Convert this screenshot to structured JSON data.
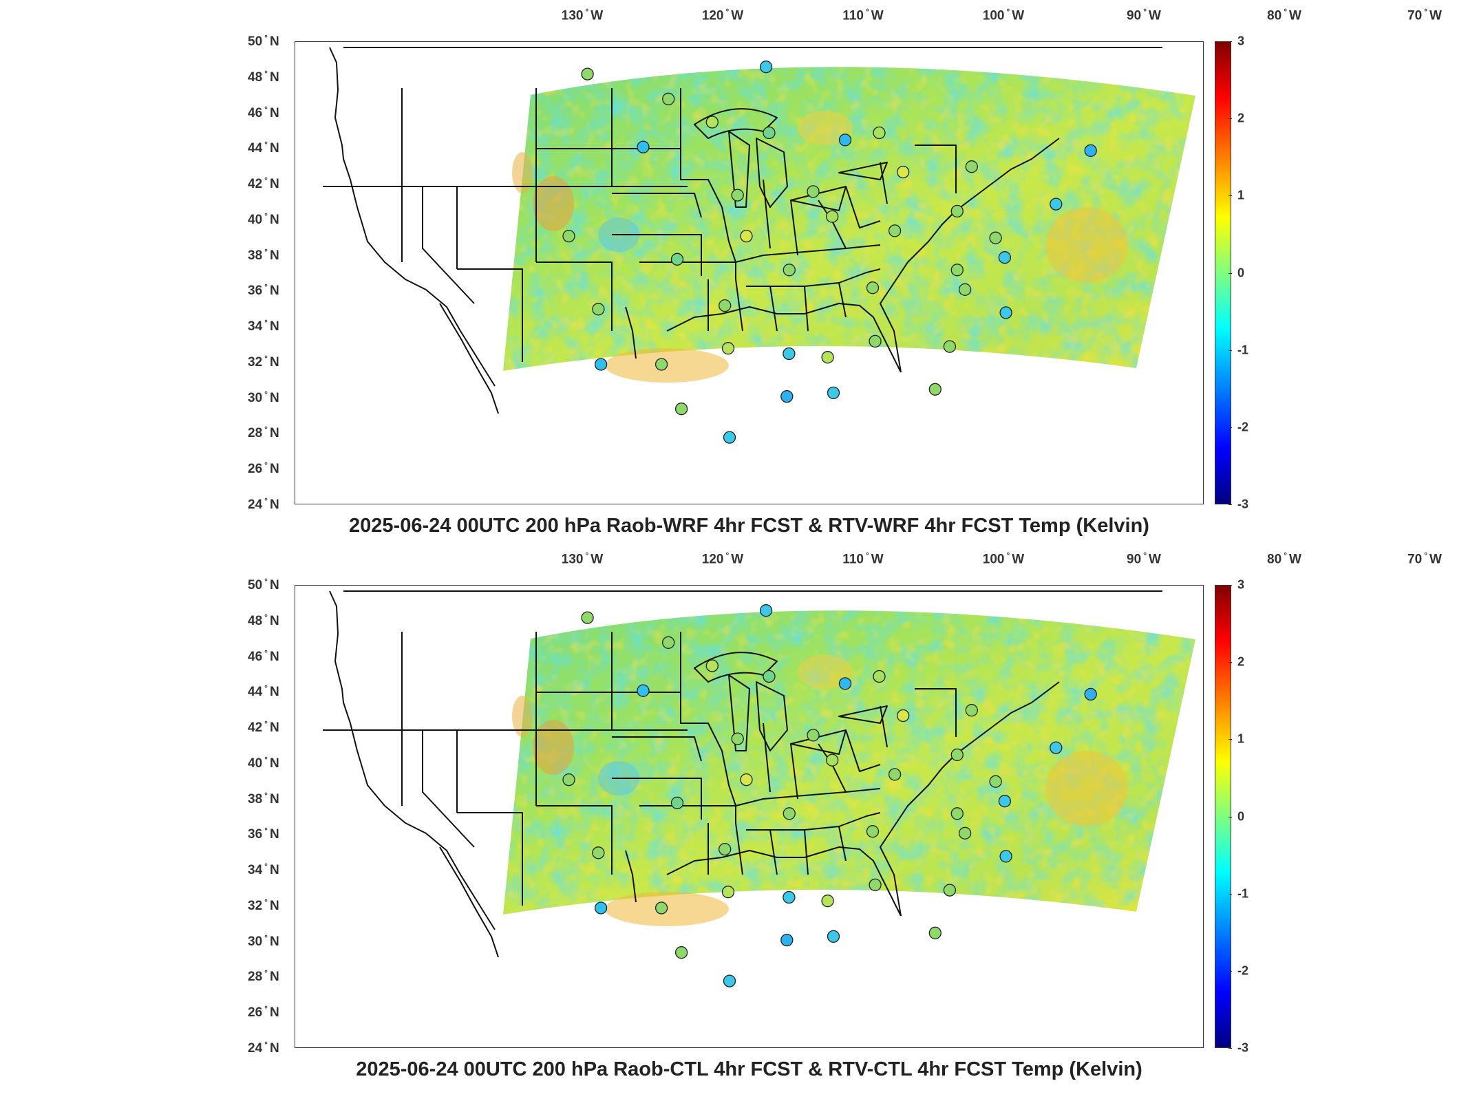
{
  "lon_ticks": [
    {
      "deg": 130,
      "text_num": "130",
      "text_dir": "W",
      "pos": 0.04
    },
    {
      "deg": 120,
      "text_num": "120",
      "text_dir": "W",
      "pos": 0.153
    },
    {
      "deg": 110,
      "text_num": "110",
      "text_dir": "W",
      "pos": 0.266
    },
    {
      "deg": 100,
      "text_num": "100",
      "text_dir": "W",
      "pos": 0.378
    },
    {
      "deg": 90,
      "text_num": "90",
      "text_dir": "W",
      "pos": 0.491
    },
    {
      "deg": 80,
      "text_num": "80",
      "text_dir": "W",
      "pos": 0.604
    },
    {
      "deg": 70,
      "text_num": "70",
      "text_dir": "W",
      "pos": 0.717
    }
  ],
  "lat_ticks": [
    {
      "deg": 50,
      "text_num": "50",
      "text_dir": "N"
    },
    {
      "deg": 48,
      "text_num": "48",
      "text_dir": "N"
    },
    {
      "deg": 46,
      "text_num": "46",
      "text_dir": "N"
    },
    {
      "deg": 44,
      "text_num": "44",
      "text_dir": "N"
    },
    {
      "deg": 42,
      "text_num": "42",
      "text_dir": "N"
    },
    {
      "deg": 40,
      "text_num": "40",
      "text_dir": "N"
    },
    {
      "deg": 38,
      "text_num": "38",
      "text_dir": "N"
    },
    {
      "deg": 36,
      "text_num": "36",
      "text_dir": "N"
    },
    {
      "deg": 34,
      "text_num": "34",
      "text_dir": "N"
    },
    {
      "deg": 32,
      "text_num": "32",
      "text_dir": "N"
    },
    {
      "deg": 30,
      "text_num": "30",
      "text_dir": "N"
    },
    {
      "deg": 28,
      "text_num": "28",
      "text_dir": "N"
    },
    {
      "deg": 26,
      "text_num": "26",
      "text_dir": "N"
    },
    {
      "deg": 24,
      "text_num": "24",
      "text_dir": "N"
    }
  ],
  "colorbar": {
    "range": [
      -3,
      3
    ],
    "ticks": [
      "3",
      "2",
      "1",
      "0",
      "-1",
      "-2",
      "-3"
    ],
    "colormap": "jet"
  },
  "panels": [
    {
      "id": "top",
      "title": "2025-06-24 00UTC 200 hPa Raob-WRF 4hr FCST & RTV-WRF 4hr FCST Temp (Kelvin)"
    },
    {
      "id": "bottom",
      "title": "2025-06-24 00UTC 200 hPa Raob-CTL 4hr FCST & RTV-CTL 4hr FCST Temp (Kelvin)"
    }
  ],
  "stations": [
    {
      "lon": -106.6,
      "lat": 48.2,
      "color": "#8ed96a"
    },
    {
      "lon": -100.8,
      "lat": 46.8,
      "color": "#8ed96a"
    },
    {
      "lon": -93.6,
      "lat": 48.6,
      "color": "#3cc8e8"
    },
    {
      "lon": -97.7,
      "lat": 45.5,
      "color": "#b5e35a"
    },
    {
      "lon": -93.6,
      "lat": 44.9,
      "color": "#6fd58a"
    },
    {
      "lon": -102.8,
      "lat": 44.1,
      "color": "#2fc0f0"
    },
    {
      "lon": -88.1,
      "lat": 44.5,
      "color": "#2fb8f0"
    },
    {
      "lon": -85.6,
      "lat": 44.9,
      "color": "#a8e060"
    },
    {
      "lon": -84.0,
      "lat": 42.7,
      "color": "#d8e84a"
    },
    {
      "lon": -79.0,
      "lat": 43.0,
      "color": "#8ed96a"
    },
    {
      "lon": -70.3,
      "lat": 43.9,
      "color": "#2fb0f0"
    },
    {
      "lon": -73.0,
      "lat": 40.9,
      "color": "#3cc8e8"
    },
    {
      "lon": -80.2,
      "lat": 40.5,
      "color": "#8ed96a"
    },
    {
      "lon": -77.5,
      "lat": 39.0,
      "color": "#8ed96a"
    },
    {
      "lon": -76.9,
      "lat": 37.9,
      "color": "#3cc8e8"
    },
    {
      "lon": -96.1,
      "lat": 41.4,
      "color": "#8ed96a"
    },
    {
      "lon": -90.6,
      "lat": 41.6,
      "color": "#8ed96a"
    },
    {
      "lon": -89.3,
      "lat": 40.2,
      "color": "#a8e060"
    },
    {
      "lon": -84.8,
      "lat": 39.4,
      "color": "#8ed96a"
    },
    {
      "lon": -95.6,
      "lat": 39.1,
      "color": "#d8e84a"
    },
    {
      "lon": -100.7,
      "lat": 37.8,
      "color": "#6fd58a"
    },
    {
      "lon": -108.5,
      "lat": 39.1,
      "color": "#8ed96a"
    },
    {
      "lon": -92.6,
      "lat": 37.2,
      "color": "#8ed96a"
    },
    {
      "lon": -86.6,
      "lat": 36.2,
      "color": "#8ed96a"
    },
    {
      "lon": -80.4,
      "lat": 37.2,
      "color": "#8ed96a"
    },
    {
      "lon": -79.9,
      "lat": 36.1,
      "color": "#8ed96a"
    },
    {
      "lon": -77.0,
      "lat": 34.8,
      "color": "#3cc8e8"
    },
    {
      "lon": -106.6,
      "lat": 35.0,
      "color": "#8ed96a"
    },
    {
      "lon": -97.4,
      "lat": 35.2,
      "color": "#8ed96a"
    },
    {
      "lon": -97.3,
      "lat": 32.8,
      "color": "#b5e35a"
    },
    {
      "lon": -92.9,
      "lat": 32.5,
      "color": "#3cc8e8"
    },
    {
      "lon": -90.1,
      "lat": 32.3,
      "color": "#b5e35a"
    },
    {
      "lon": -86.6,
      "lat": 33.2,
      "color": "#8ed96a"
    },
    {
      "lon": -81.2,
      "lat": 32.9,
      "color": "#8ed96a"
    },
    {
      "lon": -106.6,
      "lat": 31.9,
      "color": "#2fc0f0"
    },
    {
      "lon": -102.2,
      "lat": 31.9,
      "color": "#8ed96a"
    },
    {
      "lon": -100.9,
      "lat": 29.4,
      "color": "#8ed96a"
    },
    {
      "lon": -93.2,
      "lat": 30.1,
      "color": "#2fb0f0"
    },
    {
      "lon": -89.8,
      "lat": 30.3,
      "color": "#3cc8e8"
    },
    {
      "lon": -82.4,
      "lat": 30.5,
      "color": "#8ed96a"
    },
    {
      "lon": -97.5,
      "lat": 27.8,
      "color": "#3cc8e8"
    }
  ]
}
